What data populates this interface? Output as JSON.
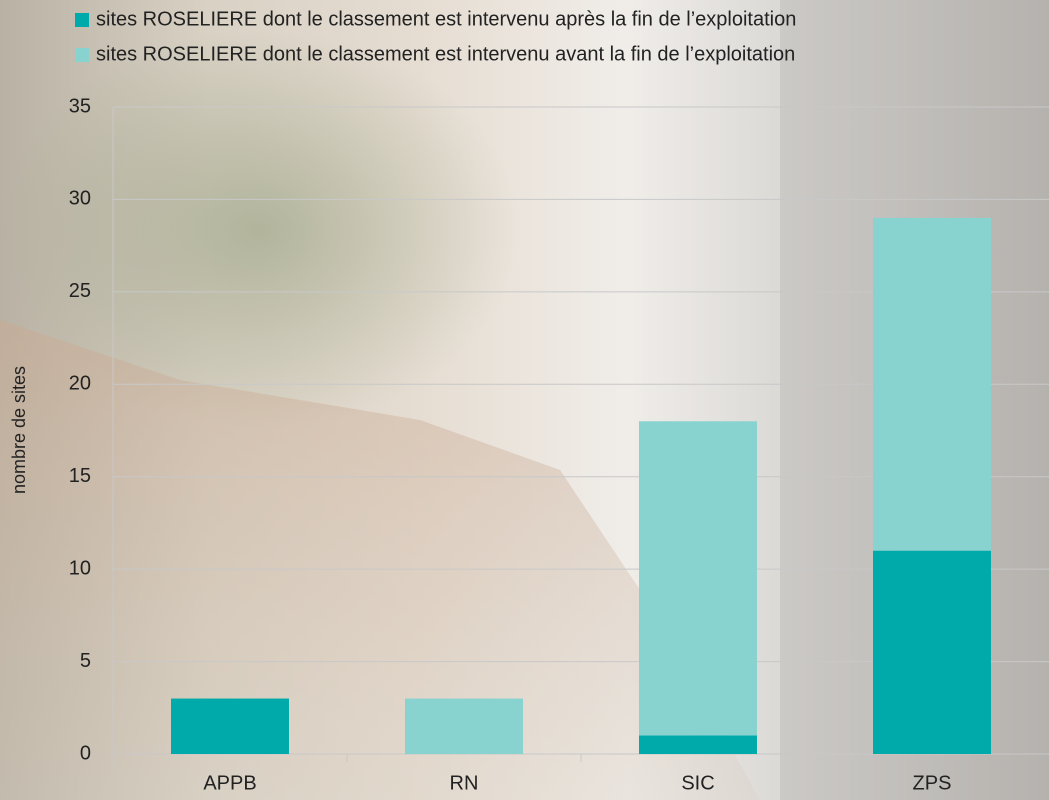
{
  "chart_data": {
    "type": "stacked-bar",
    "y_label": "nombre de sites",
    "categories": [
      "APPB",
      "RN",
      "SIC",
      "ZPS"
    ],
    "series": [
      {
        "name": "sites ROSELIERE dont le classement est intervenu après la fin de l’exploitation",
        "color": "#00a9aa",
        "values": [
          3,
          0,
          1,
          11
        ]
      },
      {
        "name": "sites ROSELIERE dont le classement est intervenu avant la fin de l’exploitation",
        "color": "#88d3d0",
        "values": [
          0,
          3,
          17,
          18
        ]
      }
    ],
    "ylim": [
      0,
      35
    ],
    "yticks": [
      0,
      5,
      10,
      15,
      20,
      25,
      30,
      35
    ],
    "grid": true
  }
}
